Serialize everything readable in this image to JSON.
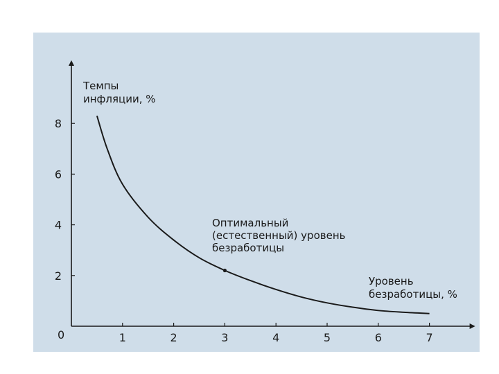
{
  "chart_data": {
    "type": "line",
    "title": "",
    "ylabel": [
      "Темпы",
      "инфляции, %"
    ],
    "xlabel": [
      "Уровень",
      "безработицы, %"
    ],
    "annotation": {
      "lines": [
        "Оптимальный",
        "(естественный) уровень",
        "безработицы"
      ],
      "point": {
        "x": 3,
        "y": 2.2
      }
    },
    "origin_label": "0",
    "xticks": [
      1,
      2,
      3,
      4,
      5,
      6,
      7
    ],
    "yticks": [
      2,
      4,
      6,
      8
    ],
    "xlim": [
      0,
      7.8
    ],
    "ylim": [
      0,
      10.3
    ],
    "grid": false,
    "series": [
      {
        "x": [
          0.5,
          0.7,
          1.0,
          1.5,
          2.0,
          2.5,
          3.0,
          3.5,
          4.0,
          4.5,
          5.0,
          5.5,
          6.0,
          6.5,
          7.0
        ],
        "y": [
          8.3,
          7.0,
          5.6,
          4.3,
          3.4,
          2.7,
          2.2,
          1.8,
          1.45,
          1.15,
          0.92,
          0.75,
          0.62,
          0.55,
          0.5
        ]
      }
    ],
    "colors": {
      "background": "#cfdde9",
      "line": "#1a1a1a"
    }
  }
}
